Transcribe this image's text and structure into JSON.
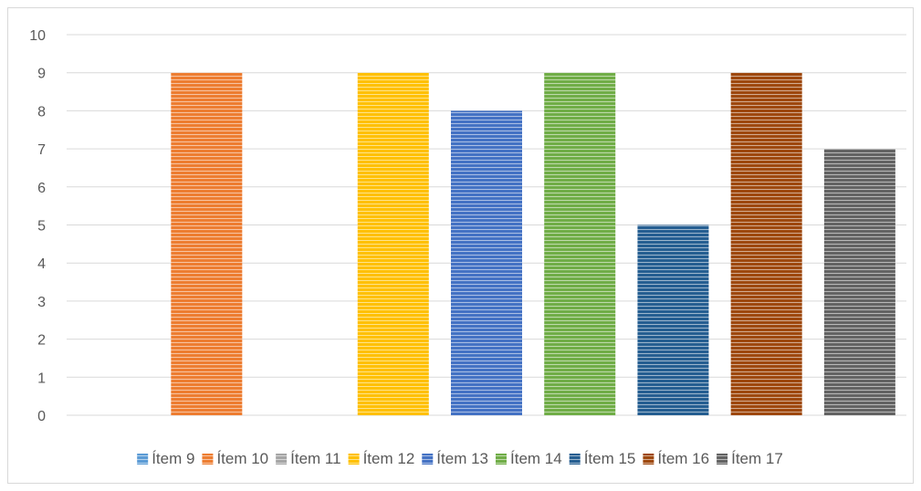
{
  "chart_data": {
    "type": "bar",
    "title": "",
    "xlabel": "",
    "ylabel": "",
    "ylim": [
      0,
      10
    ],
    "yticks": [
      0,
      1,
      2,
      3,
      4,
      5,
      6,
      7,
      8,
      9,
      10
    ],
    "grid": true,
    "legend_position": "bottom",
    "series": [
      {
        "name": "Ítem 9",
        "value": 0,
        "color": "#5b9bd5"
      },
      {
        "name": "Ítem 10",
        "value": 9,
        "color": "#ed7d31"
      },
      {
        "name": "Ítem 11",
        "value": 0,
        "color": "#a5a5a5"
      },
      {
        "name": "Ítem 12",
        "value": 9,
        "color": "#ffc000"
      },
      {
        "name": "Ítem 13",
        "value": 8,
        "color": "#4472c4"
      },
      {
        "name": "Ítem 14",
        "value": 9,
        "color": "#70ad47"
      },
      {
        "name": "Ítem 15",
        "value": 5,
        "color": "#255e91"
      },
      {
        "name": "Ítem 16",
        "value": 9,
        "color": "#9e480e"
      },
      {
        "name": "Ítem 17",
        "value": 7,
        "color": "#636363"
      }
    ]
  }
}
